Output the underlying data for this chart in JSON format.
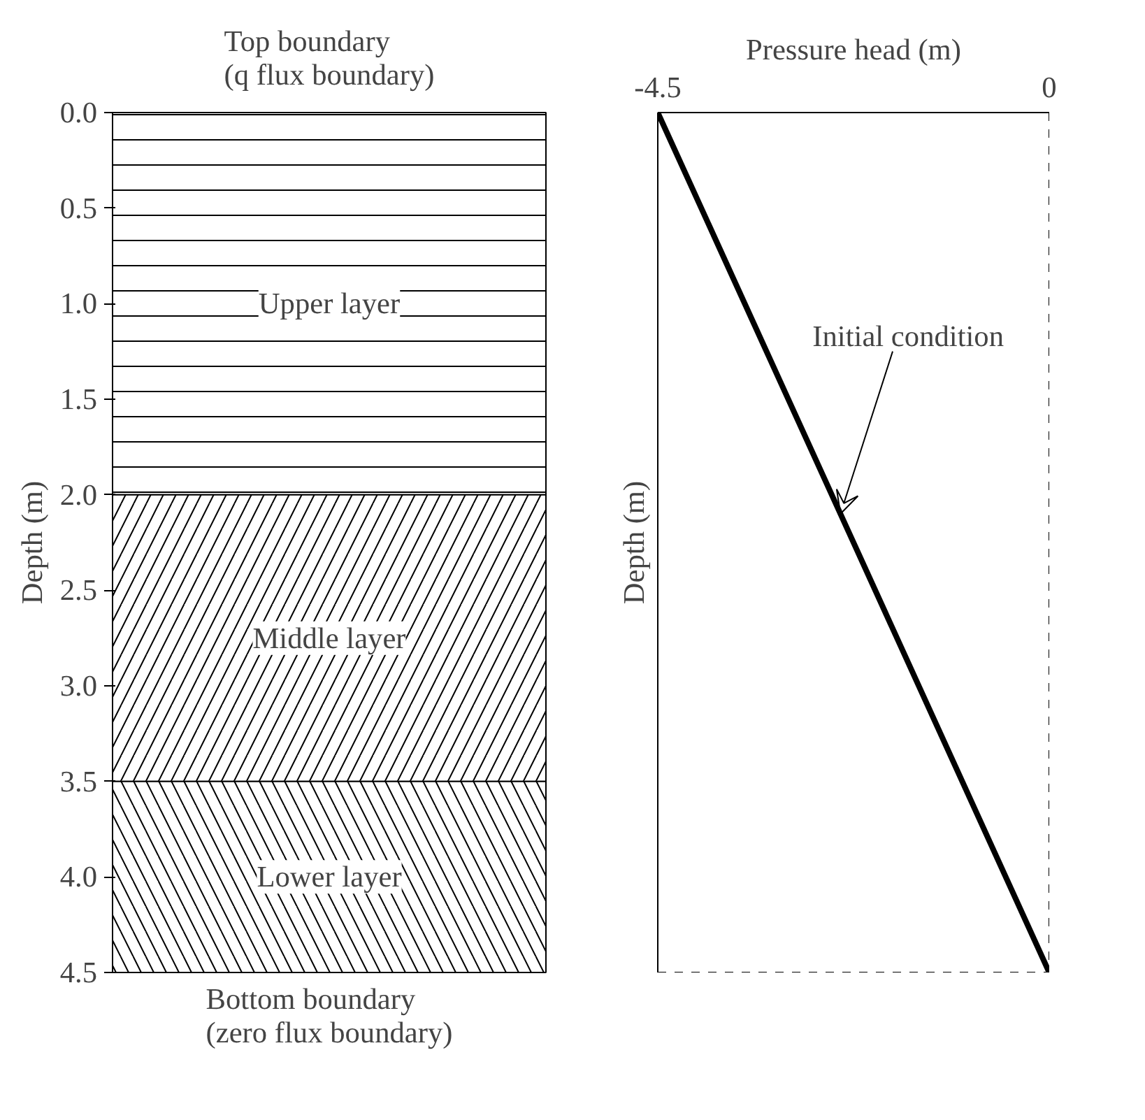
{
  "chart_data": [
    {
      "type": "bar",
      "stacked": true,
      "categories": [
        null
      ],
      "ylabel": "Depth (m)",
      "ylim": [
        4.5,
        0
      ],
      "yticks": [
        {
          "value": 0,
          "label": "0.0"
        },
        {
          "value": 0.5,
          "label": "0.5"
        },
        {
          "value": 1,
          "label": "1.0"
        },
        {
          "value": 1.5,
          "label": "1.5"
        },
        {
          "value": 2,
          "label": "2.0"
        },
        {
          "value": 2.5,
          "label": "2.5"
        },
        {
          "value": 3,
          "label": "3.0"
        },
        {
          "value": 3.5,
          "label": "3.5"
        },
        {
          "value": 4,
          "label": "4.0"
        },
        {
          "value": 4.5,
          "label": "4.5"
        }
      ],
      "tick_labels": "y",
      "series": [
        {
          "name": "Upper layer",
          "color": "#ffffff",
          "values": [
            2
          ]
        },
        {
          "name": "Middle layer",
          "color": "#ffffff",
          "values": [
            1.5
          ]
        },
        {
          "name": "Lower layer",
          "color": "#ffffff",
          "values": [
            1
          ]
        }
      ],
      "annotations": [
        "Top boundary\n(q flux boundary)",
        "Bottom boundary\n(zero flux boundary)"
      ]
    },
    {
      "type": "line",
      "xlabel": "Pressure head (m)",
      "ylabel": "Depth (m)",
      "xlim": [
        -4.5,
        0
      ],
      "xticks": [
        -4.5,
        0
      ],
      "ylim": [
        4.5,
        0
      ],
      "tick_labels": "x",
      "marker": "none",
      "line_style": "solid",
      "series": [
        {
          "x": [
            -4.5,
            0
          ],
          "values": [
            0,
            4.5
          ],
          "color": "#000000"
        }
      ],
      "ref_lines": [
        {
          "axis": "x",
          "value": 0,
          "line_style": "dashed",
          "color": "#000000"
        },
        {
          "axis": "y",
          "value": 4.5,
          "line_style": "dashed",
          "color": "#000000"
        }
      ],
      "annotations": [
        {
          "text": "Initial condition",
          "x": -2.4,
          "y": 2.1
        }
      ]
    }
  ]
}
